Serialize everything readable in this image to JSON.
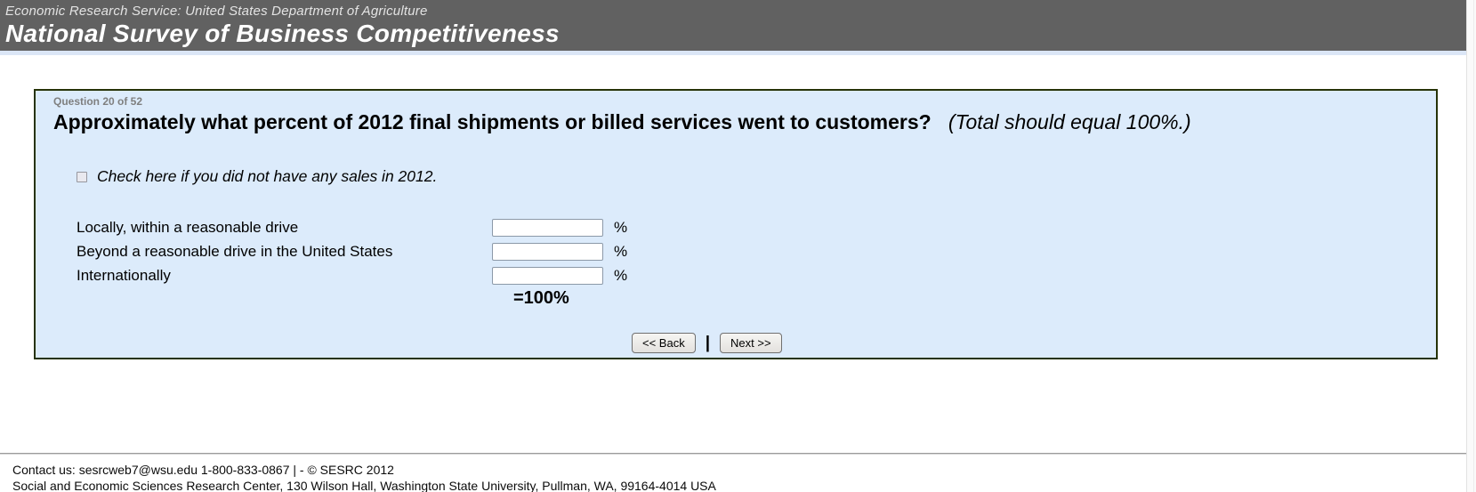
{
  "header": {
    "agency": "Economic Research Service: United States Department of Agriculture",
    "title": "National Survey of Business Competitiveness"
  },
  "question": {
    "progress": "Question 20 of 52",
    "text_bold": "Approximately what percent of 2012 final shipments or billed services went to customers?",
    "text_italic": "(Total should equal 100%.)",
    "checkbox_label": "Check here if you did not have any sales in 2012.",
    "rows": [
      {
        "label": "Locally, within a reasonable drive",
        "value": "",
        "suffix": "%"
      },
      {
        "label": "Beyond a reasonable drive in the United States",
        "value": "",
        "suffix": "%"
      },
      {
        "label": "Internationally",
        "value": "",
        "suffix": "%"
      }
    ],
    "total_label": "=100%"
  },
  "buttons": {
    "back": "<< Back",
    "separator": "|",
    "next": "Next >>"
  },
  "footer": {
    "line1": "Contact us: sesrcweb7@wsu.edu 1-800-833-0867 | - © SESRC 2012",
    "line2": "Social and Economic Sciences Research Center, 130 Wilson Hall, Washington State University, Pullman, WA, 99164-4014 USA"
  },
  "colors": {
    "header_bg": "#616161",
    "box_bg": "#dcebfb",
    "box_border": "#263308",
    "strip_blue": "#dbe6f6"
  }
}
